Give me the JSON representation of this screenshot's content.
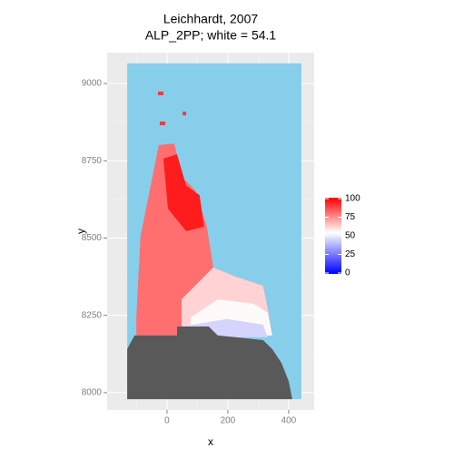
{
  "chart_data": {
    "type": "raster",
    "title": "Leichhardt, 2007",
    "subtitle": "ALP_2PP; white = 54.1",
    "x_label": "x",
    "y_label": "y",
    "xlim": [
      -197,
      484
    ],
    "ylim": [
      7944,
      9100
    ],
    "xticks": [
      0,
      200,
      400
    ],
    "yticks": [
      8000,
      8250,
      8500,
      8750,
      9000
    ],
    "grid": true,
    "white": 54.1,
    "low_color": "#0000ff",
    "mid_color": "#ffffff",
    "high_color": "#ff0000",
    "clim": [
      0,
      100
    ],
    "legend_ticks": [
      0,
      25,
      50,
      75,
      100
    ],
    "regions": [
      {
        "color": "#87ceeb",
        "x": [
          -131,
          442,
          442,
          -131
        ],
        "y": [
          9065,
          9065,
          7979,
          7979
        ]
      },
      {
        "value": 80,
        "x": [
          -101,
          -87,
          -57,
          -27,
          24,
          48,
          93,
          131,
          152,
          227,
          316,
          331,
          346,
          -101
        ],
        "y": [
          8243,
          8507,
          8654,
          8801,
          8806,
          8698,
          8654,
          8537,
          8405,
          8375,
          8346,
          8273,
          8185,
          8185
        ]
      },
      {
        "value": 62,
        "x": [
          48,
          152,
          227,
          316,
          331,
          346,
          48
        ],
        "y": [
          8302,
          8405,
          8375,
          8346,
          8273,
          8185,
          8185
        ]
      },
      {
        "value": 55,
        "x": [
          78,
          167,
          287,
          331,
          346,
          78
        ],
        "y": [
          8243,
          8302,
          8287,
          8258,
          8185,
          8185
        ]
      },
      {
        "value": 45,
        "x": [
          48,
          197,
          316,
          331,
          48
        ],
        "y": [
          8214,
          8238,
          8220,
          8179,
          8179
        ]
      },
      {
        "value": 95,
        "x": [
          -12,
          33,
          63,
          107,
          122,
          63,
          3
        ],
        "y": [
          8757,
          8771,
          8669,
          8639,
          8537,
          8522,
          8595
        ]
      },
      {
        "value": 90,
        "x": [
          -30,
          -12,
          -12,
          -30
        ],
        "y": [
          8974,
          8974,
          8962,
          8962
        ]
      },
      {
        "value": 90,
        "x": [
          -24,
          -6,
          -6,
          -24
        ],
        "y": [
          8877,
          8877,
          8865,
          8865
        ]
      },
      {
        "value": 90,
        "x": [
          51,
          63,
          63,
          51
        ],
        "y": [
          8909,
          8909,
          8897,
          8897
        ]
      },
      {
        "color": "#595959",
        "x": [
          -131,
          -107,
          33,
          33,
          137,
          167,
          316,
          346,
          376,
          400,
          412,
          -131
        ],
        "y": [
          8141,
          8185,
          8185,
          8214,
          8214,
          8185,
          8170,
          8141,
          8097,
          8038,
          7979,
          7979
        ]
      }
    ]
  }
}
